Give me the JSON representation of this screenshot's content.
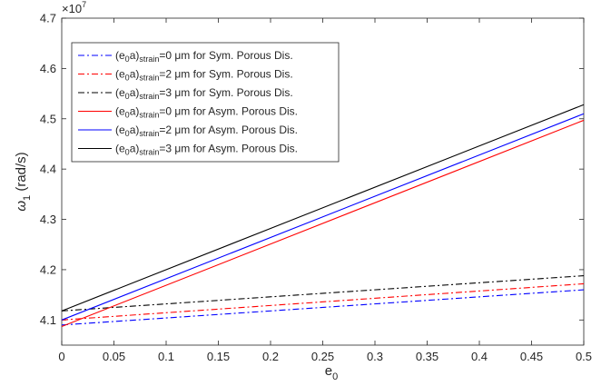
{
  "chart_data": {
    "type": "line",
    "xlabel": "e",
    "xlabel_sub": "0",
    "ylabel": "ω",
    "ylabel_sub": "1",
    "ylabel_unit": " (rad/s)",
    "y_scale_label": "×10",
    "y_scale_exp": "7",
    "xlim": [
      0,
      0.5
    ],
    "ylim": [
      4.05,
      4.7
    ],
    "xticks": [
      0,
      0.05,
      0.1,
      0.15,
      0.2,
      0.25,
      0.3,
      0.35,
      0.4,
      0.45,
      0.5
    ],
    "xtick_labels": [
      "0",
      "0.05",
      "0.1",
      "0.15",
      "0.2",
      "0.25",
      "0.3",
      "0.35",
      "0.4",
      "0.45",
      "0.5"
    ],
    "yticks": [
      4.1,
      4.2,
      4.3,
      4.4,
      4.5,
      4.6,
      4.7
    ],
    "ytick_labels": [
      "4.1",
      "4.2",
      "4.3",
      "4.4",
      "4.5",
      "4.6",
      "4.7"
    ],
    "legend_position": "top-left",
    "grid": false,
    "series": [
      {
        "name": "(e0a)strain=0 μm for Sym. Porous Dis.",
        "legend": {
          "pre": "(e",
          "sub1": "0",
          "mid": "a)",
          "sub2": "strain",
          "post": "=0 μm for Sym. Porous Dis."
        },
        "color": "#0000ff",
        "dash": "dashdot",
        "x": [
          0,
          0.5
        ],
        "y": [
          4.09,
          4.16
        ]
      },
      {
        "name": "(e0a)strain=2 μm for Sym. Porous Dis.",
        "legend": {
          "pre": "(e",
          "sub1": "0",
          "mid": "a)",
          "sub2": "strain",
          "post": "=2 μm for Sym. Porous Dis."
        },
        "color": "#ff0000",
        "dash": "dashdot",
        "x": [
          0,
          0.5
        ],
        "y": [
          4.1,
          4.172
        ]
      },
      {
        "name": "(e0a)strain=3 μm for Sym. Porous Dis.",
        "legend": {
          "pre": "(e",
          "sub1": "0",
          "mid": "a)",
          "sub2": "strain",
          "post": "=3 μm for Sym. Porous Dis."
        },
        "color": "#000000",
        "dash": "dashdot",
        "x": [
          0,
          0.5
        ],
        "y": [
          4.118,
          4.188
        ]
      },
      {
        "name": "(e0a)strain=0 μm for Asym. Porous Dis.",
        "legend": {
          "pre": "(e",
          "sub1": "0",
          "mid": "a)",
          "sub2": "strain",
          "post": "=0 μm for Asym. Porous Dis."
        },
        "color": "#ff0000",
        "dash": "solid",
        "x": [
          0,
          0.5
        ],
        "y": [
          4.087,
          4.497
        ]
      },
      {
        "name": "(e0a)strain=2 μm for Asym. Porous Dis.",
        "legend": {
          "pre": "(e",
          "sub1": "0",
          "mid": "a)",
          "sub2": "strain",
          "post": "=2 μm for Asym. Porous Dis."
        },
        "color": "#0000ff",
        "dash": "solid",
        "x": [
          0,
          0.5
        ],
        "y": [
          4.1,
          4.51
        ]
      },
      {
        "name": "(e0a)strain=3 μm for Asym. Porous Dis.",
        "legend": {
          "pre": "(e",
          "sub1": "0",
          "mid": "a)",
          "sub2": "strain",
          "post": "=3 μm for Asym. Porous Dis."
        },
        "color": "#000000",
        "dash": "solid",
        "x": [
          0,
          0.5
        ],
        "y": [
          4.118,
          4.528
        ]
      }
    ]
  }
}
